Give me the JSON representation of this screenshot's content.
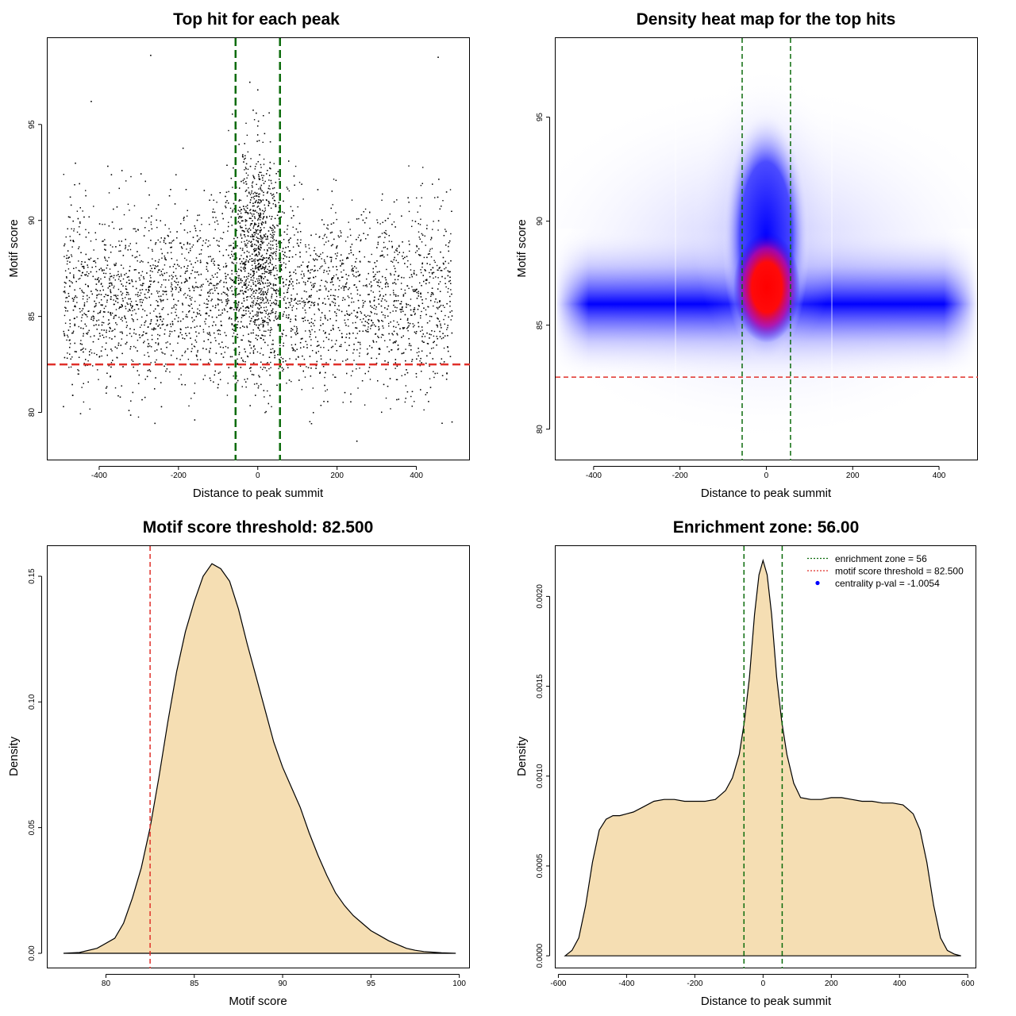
{
  "colors": {
    "zone_line": "#0b6b0b",
    "threshold_line": "#e0302a",
    "fill": "#f5deb3",
    "axis": "#000000",
    "heat_low": "#ffffff",
    "heat_mid": "#0000ff",
    "heat_high": "#ff0000"
  },
  "chart_data": [
    {
      "id": "scatter",
      "type": "scatter",
      "title": "Top hit for each peak",
      "xlabel": "Distance to peak summit",
      "ylabel": "Motif score",
      "xlim": [
        -530,
        535
      ],
      "ylim": [
        77.5,
        99.5
      ],
      "xticks": [
        -400,
        -200,
        0,
        200,
        400
      ],
      "yticks": [
        80,
        85,
        90,
        95
      ],
      "grid": false,
      "lines": {
        "x_zone": [
          -56,
          56
        ],
        "y_threshold": 82.5
      },
      "sample_points": [
        {
          "x": -490,
          "y": 80.3
        },
        {
          "x": -420,
          "y": 96.2
        },
        {
          "x": -270,
          "y": 98.6
        },
        {
          "x": -160,
          "y": 81.0
        },
        {
          "x": -20,
          "y": 97.2
        },
        {
          "x": 0,
          "y": 96.8
        },
        {
          "x": 250,
          "y": 78.5
        },
        {
          "x": 455,
          "y": 98.5
        },
        {
          "x": 490,
          "y": 79.5
        }
      ],
      "note_density": "bulk of points spans x -490..490 and y 80..93, dense vertical band near x = 0 reaching y 97"
    },
    {
      "id": "heatmap",
      "type": "heatmap",
      "title": "Density heat map for the top hits",
      "xlabel": "Distance to peak summit",
      "ylabel": "Motif score",
      "xlim": [
        -488,
        490
      ],
      "ylim": [
        78.5,
        98.8
      ],
      "xticks": [
        -400,
        -200,
        0,
        200,
        400
      ],
      "yticks": [
        80,
        85,
        90,
        95
      ],
      "grid": false,
      "lines": {
        "x_zone": [
          -56,
          56
        ],
        "y_threshold": 82.5
      },
      "density_peak": {
        "x": 0,
        "y": 87.0
      },
      "background_band_center_y": 86.2
    },
    {
      "id": "score_density",
      "type": "area",
      "title": "Motif score threshold: 82.500",
      "xlabel": "Motif score",
      "ylabel": "Density",
      "xlim": [
        76.7,
        100.6
      ],
      "ylim": [
        -0.006,
        0.162
      ],
      "xticks": [
        80,
        85,
        90,
        95,
        100
      ],
      "yticks": [
        0.0,
        0.05,
        0.1,
        0.15
      ],
      "ytick_labels": [
        "0.00",
        "0.05",
        "0.10",
        "0.15"
      ],
      "grid": false,
      "lines": {
        "x_threshold": 82.5
      },
      "x": [
        77.6,
        78.5,
        79.5,
        80.5,
        81,
        81.5,
        82,
        82.5,
        83,
        83.5,
        84,
        84.5,
        85,
        85.5,
        86,
        86.5,
        87,
        87.5,
        88,
        88.5,
        89,
        89.5,
        90,
        90.5,
        91,
        91.5,
        92,
        92.5,
        93,
        93.5,
        94,
        94.5,
        95,
        95.5,
        96,
        96.5,
        97,
        97.5,
        98,
        99,
        99.8
      ],
      "values": [
        0.0,
        0.0003,
        0.002,
        0.006,
        0.012,
        0.022,
        0.034,
        0.05,
        0.07,
        0.092,
        0.112,
        0.128,
        0.14,
        0.15,
        0.155,
        0.153,
        0.148,
        0.137,
        0.123,
        0.11,
        0.097,
        0.084,
        0.074,
        0.066,
        0.058,
        0.048,
        0.039,
        0.031,
        0.024,
        0.019,
        0.015,
        0.012,
        0.009,
        0.007,
        0.005,
        0.0035,
        0.002,
        0.0012,
        0.0007,
        0.0002,
        0.0
      ]
    },
    {
      "id": "distance_density",
      "type": "area",
      "title": "Enrichment zone: 56.00",
      "xlabel": "Distance to peak summit",
      "ylabel": "Density",
      "xlim": [
        -608,
        625
      ],
      "ylim": [
        -7e-05,
        0.00228
      ],
      "xticks": [
        -600,
        -400,
        -200,
        0,
        200,
        400,
        600
      ],
      "yticks": [
        0.0,
        0.0005,
        0.001,
        0.0015,
        0.002
      ],
      "ytick_labels": [
        "0.0000",
        "0.0005",
        "0.0010",
        "0.0015",
        "0.0020"
      ],
      "grid": false,
      "lines": {
        "x_zone": [
          -56,
          56
        ]
      },
      "legend_position": "top-right",
      "legend": [
        {
          "label": "enrichment zone = 56",
          "kind": "dotted-line",
          "color": "#0b6b0b"
        },
        {
          "label": "motif score threshold = 82.500",
          "kind": "dotted-line",
          "color": "#e0302a"
        },
        {
          "label": "centrality p-val = -1.0054",
          "kind": "point",
          "color": "#0000ff"
        }
      ],
      "x": [
        -580,
        -560,
        -540,
        -520,
        -500,
        -480,
        -460,
        -440,
        -420,
        -400,
        -380,
        -350,
        -320,
        -290,
        -260,
        -230,
        -200,
        -170,
        -140,
        -110,
        -90,
        -70,
        -55,
        -40,
        -25,
        -12,
        0,
        12,
        25,
        40,
        55,
        70,
        90,
        110,
        140,
        170,
        200,
        230,
        260,
        290,
        320,
        350,
        380,
        410,
        440,
        460,
        480,
        500,
        520,
        540,
        560,
        580
      ],
      "values": [
        0.0,
        3e-05,
        0.0001,
        0.00028,
        0.00052,
        0.0007,
        0.00076,
        0.00078,
        0.00078,
        0.00079,
        0.0008,
        0.00083,
        0.00086,
        0.00087,
        0.00087,
        0.00086,
        0.00086,
        0.00086,
        0.00087,
        0.00092,
        0.00099,
        0.00112,
        0.0013,
        0.00155,
        0.0019,
        0.00212,
        0.0022,
        0.00212,
        0.0019,
        0.00155,
        0.0013,
        0.00112,
        0.00096,
        0.00088,
        0.00087,
        0.00087,
        0.00088,
        0.00088,
        0.00087,
        0.00086,
        0.00086,
        0.00085,
        0.00085,
        0.00084,
        0.00079,
        0.0007,
        0.00052,
        0.00028,
        0.0001,
        3e-05,
        1e-05,
        0.0
      ]
    }
  ]
}
